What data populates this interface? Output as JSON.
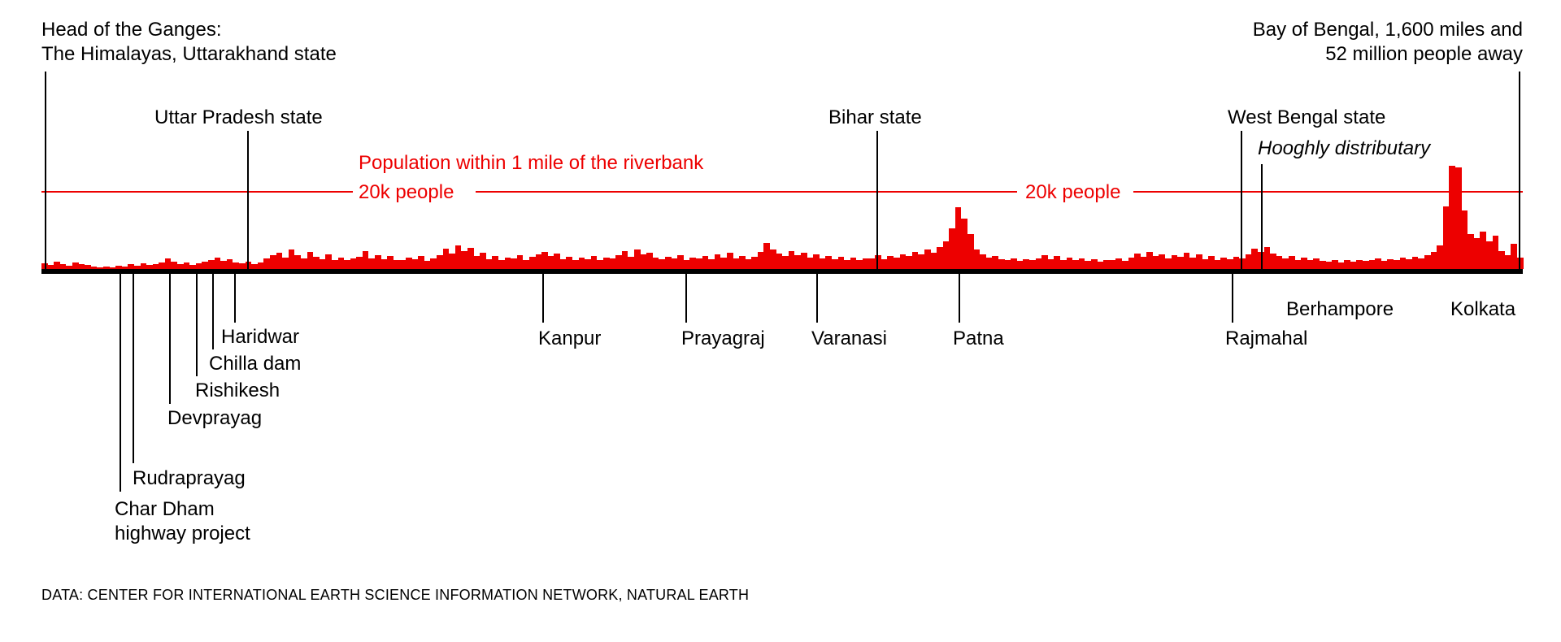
{
  "chart_data": {
    "type": "bar",
    "title": "Population within 1 mile of the riverbank",
    "threshold_label": "20k people",
    "threshold_value_people": 20000,
    "x_axis_note": "Profile along the Ganges river from its Himalayan source to the Bay of Bengal (1,600 miles); no numeric x ticks shown",
    "y_axis": "People living within 1 mile of the riverbank",
    "ylim_thousands": [
      0,
      28
    ],
    "grid": false,
    "legend": false,
    "bar_unit": "thousands of people",
    "values_thousands": [
      1.5,
      1.1,
      1.8,
      1.3,
      0.9,
      1.6,
      1.2,
      1.0,
      0.6,
      0.4,
      0.7,
      0.5,
      0.8,
      0.6,
      1.2,
      0.8,
      1.4,
      1.0,
      1.3,
      1.6,
      2.7,
      1.8,
      1.2,
      1.6,
      1.1,
      1.5,
      1.9,
      2.3,
      2.9,
      2.1,
      2.5,
      1.7,
      1.4,
      1.8,
      1.3,
      1.6,
      2.8,
      3.5,
      4.2,
      3.0,
      5.0,
      3.6,
      2.7,
      4.4,
      3.2,
      2.6,
      3.8,
      2.4,
      3.0,
      2.2,
      2.8,
      3.2,
      4.6,
      2.8,
      3.6,
      2.6,
      3.4,
      2.4,
      2.2,
      3.0,
      2.6,
      3.4,
      2.1,
      2.8,
      3.6,
      5.2,
      4.0,
      6.0,
      4.6,
      5.5,
      3.4,
      4.2,
      2.6,
      3.4,
      2.2,
      3.0,
      2.8,
      3.6,
      2.4,
      3.2,
      3.8,
      4.4,
      3.4,
      4.0,
      2.6,
      3.2,
      2.2,
      3.0,
      2.6,
      3.4,
      2.4,
      3.0,
      2.8,
      3.6,
      4.6,
      3.2,
      5.0,
      3.8,
      4.2,
      3.0,
      2.6,
      3.2,
      2.8,
      3.6,
      2.4,
      3.0,
      2.8,
      3.4,
      2.6,
      3.8,
      3.0,
      4.2,
      2.8,
      3.4,
      2.6,
      3.2,
      4.4,
      6.6,
      5.0,
      4.0,
      3.4,
      4.6,
      3.6,
      4.2,
      3.0,
      3.8,
      2.8,
      3.4,
      2.6,
      3.2,
      2.4,
      3.0,
      2.2,
      2.8,
      2.8,
      3.6,
      2.6,
      3.4,
      3.0,
      3.8,
      3.4,
      4.4,
      3.8,
      5.0,
      4.2,
      5.6,
      7.0,
      10.5,
      15.8,
      13.0,
      9.0,
      5.0,
      3.8,
      3.0,
      3.4,
      2.6,
      2.2,
      2.8,
      2.0,
      2.6,
      2.4,
      2.8,
      3.6,
      2.6,
      3.4,
      2.4,
      3.0,
      2.2,
      2.8,
      2.0,
      2.6,
      1.8,
      2.4,
      2.2,
      2.8,
      2.0,
      3.0,
      4.0,
      3.2,
      4.4,
      3.4,
      3.8,
      2.8,
      3.6,
      3.2,
      4.2,
      3.0,
      3.8,
      2.6,
      3.4,
      2.4,
      3.0,
      2.6,
      3.2,
      2.8,
      3.8,
      5.2,
      4.4,
      5.6,
      4.0,
      3.4,
      2.8,
      3.4,
      2.4,
      3.0,
      2.2,
      2.8,
      2.0,
      1.8,
      2.4,
      1.6,
      2.2,
      1.8,
      2.4,
      2.0,
      2.2,
      2.8,
      2.0,
      2.6,
      2.2,
      3.0,
      2.6,
      3.2,
      2.8,
      3.6,
      4.4,
      6.0,
      16.0,
      26.5,
      26.0,
      15.0,
      9.0,
      8.0,
      9.5,
      7.0,
      8.5,
      4.5,
      3.5,
      6.5,
      3.0
    ],
    "labels": {
      "head_line1": "Head of the Ganges:",
      "head_line2": "The Himalayas, Uttarakhand state",
      "bay_line1": "Bay of Bengal, 1,600 miles and",
      "bay_line2": "52 million people away",
      "uttar_pradesh": "Uttar Pradesh state",
      "bihar": "Bihar state",
      "west_bengal": "West Bengal state",
      "hooghly": "Hooghly distributary",
      "threshold_left": "20k people",
      "threshold_right": "20k people",
      "kanpur": "Kanpur",
      "prayagraj": "Prayagraj",
      "varanasi": "Varanasi",
      "patna": "Patna",
      "rajmahal": "Rajmahal",
      "berhampore": "Berhampore",
      "kolkata": "Kolkata",
      "haridwar": "Haridwar",
      "chilla_dam": "Chilla dam",
      "rishikesh": "Rishikesh",
      "devprayag": "Devprayag",
      "rudraprayag": "Rudraprayag",
      "char_dham_line1": "Char Dham",
      "char_dham_line2": "highway project"
    }
  },
  "source": "DATA: CENTER FOR INTERNATIONAL EARTH SCIENCE INFORMATION NETWORK, NATURAL EARTH",
  "colors": {
    "red": "#ed0000",
    "black": "#000000",
    "background": "#ffffff"
  }
}
